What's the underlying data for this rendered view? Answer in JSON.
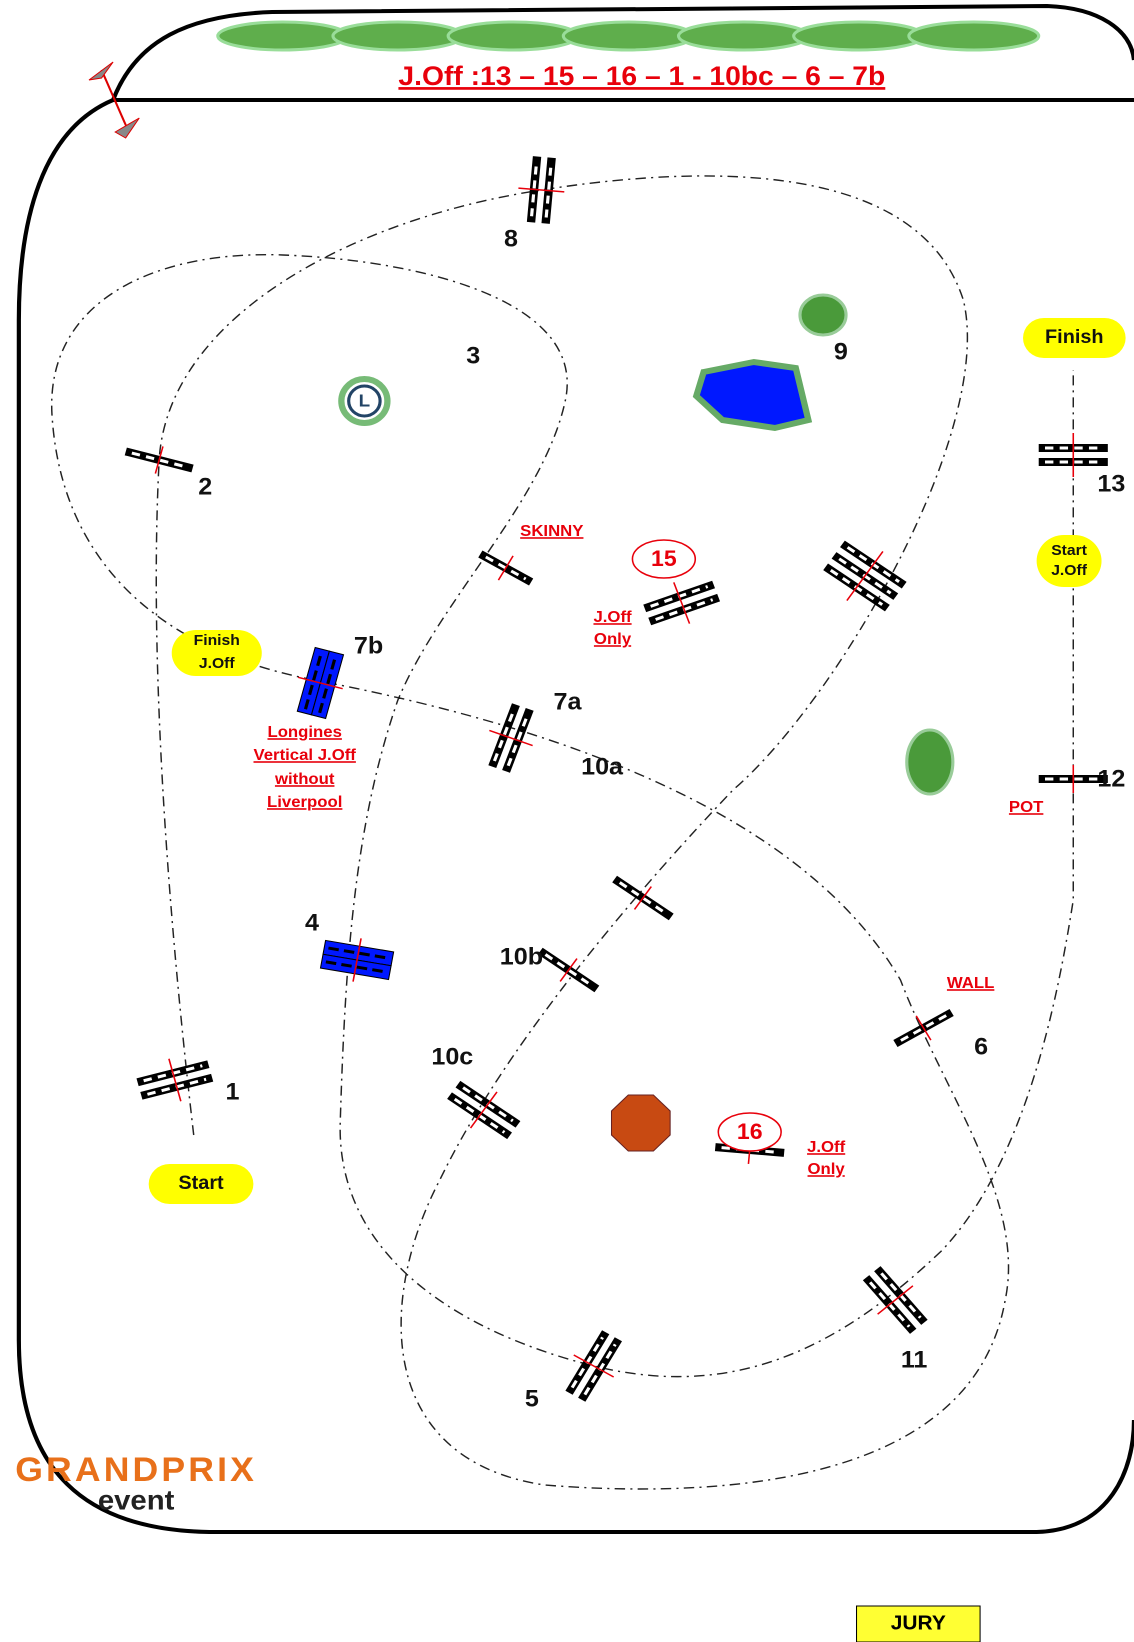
{
  "header": {
    "title": "J.Off :13 – 15 – 16 – 1  - 10bc – 6 – 7b"
  },
  "venue_mark": "L",
  "fences": {
    "1": "1",
    "2": "2",
    "3": "3",
    "4": "4",
    "5": "5",
    "6": "6",
    "7a": "7a",
    "7b": "7b",
    "8": "8",
    "9": "9",
    "10a": "10a",
    "10b": "10b",
    "10c": "10c",
    "11": "11",
    "12": "12",
    "13": "13"
  },
  "notes": {
    "skinny": "SKINNY",
    "fence15": "15",
    "joff_only_15": [
      "J.Off",
      "Only"
    ],
    "longines": [
      "Longines",
      "Vertical J.Off",
      "without",
      "Liverpool"
    ],
    "pot": "POT",
    "wall": "WALL",
    "fence16": "16",
    "joff_only_16": [
      "J.Off",
      "Only"
    ]
  },
  "markers": {
    "finish": "Finish",
    "start_joff": [
      "Start",
      "J.Off"
    ],
    "finish_joff": [
      "Finish",
      "J.Off"
    ],
    "start": "Start"
  },
  "logo": {
    "brand": "GRANDPRIX",
    "sub": "event"
  },
  "jury": "JURY"
}
